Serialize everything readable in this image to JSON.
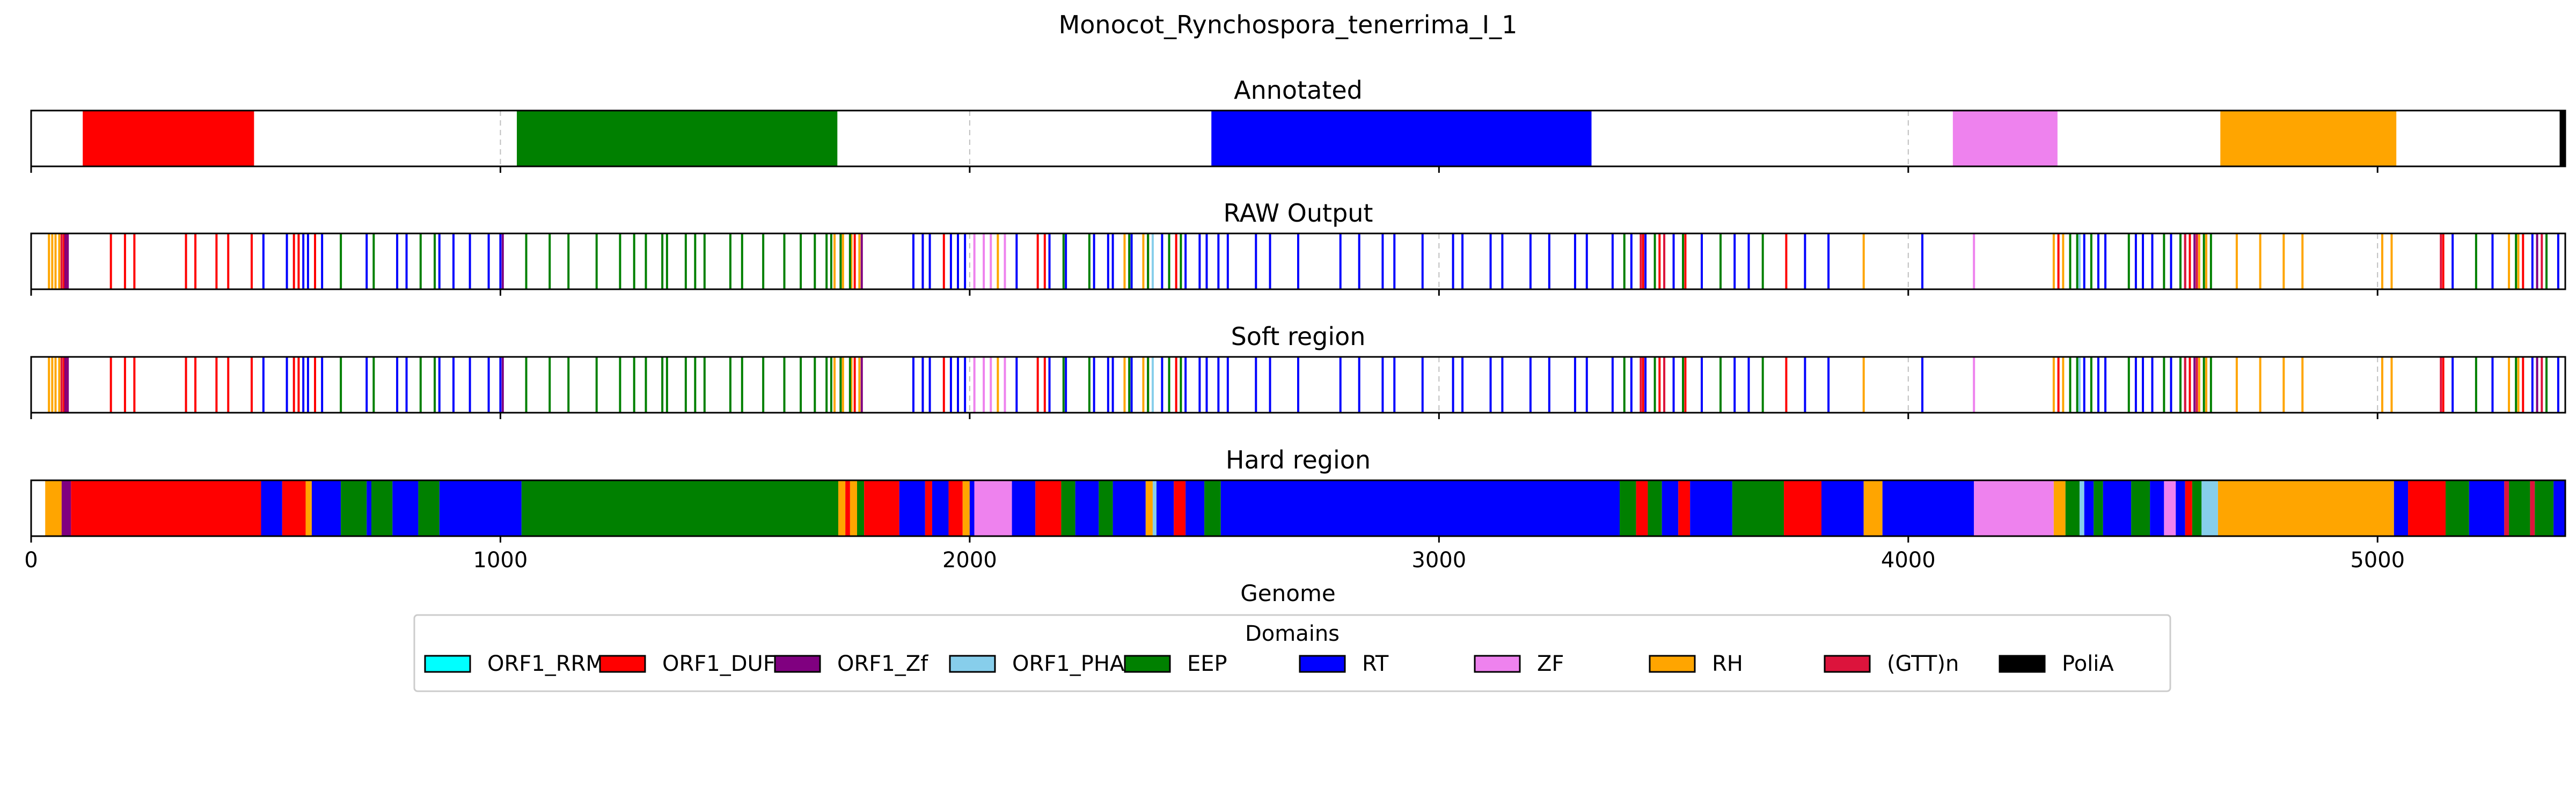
{
  "chart_data": {
    "type": "track",
    "title": "Monocot_Rynchospora_tenerrima_I_1",
    "xlabel": "Genome",
    "xlim": [
      0,
      5400
    ],
    "xticks": [
      0,
      1000,
      2000,
      3000,
      4000,
      5000
    ],
    "grid": true,
    "legend_title": "Domains",
    "legend_placement": "bottom-center",
    "domains": [
      {
        "name": "ORF1_RRM",
        "color": "#00ffff"
      },
      {
        "name": "ORF1_DUF",
        "color": "#ff0000"
      },
      {
        "name": "ORF1_Zf",
        "color": "#800080"
      },
      {
        "name": "ORF1_PHA",
        "color": "#87ceeb"
      },
      {
        "name": "EEP",
        "color": "#008000"
      },
      {
        "name": "RT",
        "color": "#0000ff"
      },
      {
        "name": "ZF",
        "color": "#ee82ee"
      },
      {
        "name": "RH",
        "color": "#ffa500"
      },
      {
        "name": "(GTT)n",
        "color": "#dc143c"
      },
      {
        "name": "PoliA",
        "color": "#000000"
      }
    ],
    "tracks": [
      {
        "title": "Annotated",
        "segments": [
          {
            "domain": "ORF1_DUF",
            "start": 110,
            "end": 475
          },
          {
            "domain": "EEP",
            "start": 1035,
            "end": 1718
          },
          {
            "domain": "RT",
            "start": 2515,
            "end": 3325
          },
          {
            "domain": "ZF",
            "start": 4095,
            "end": 4318
          },
          {
            "domain": "RH",
            "start": 4665,
            "end": 5040
          },
          {
            "domain": "PoliA",
            "start": 5388,
            "end": 5400
          }
        ]
      },
      {
        "title": "RAW Output",
        "lines": [
          {
            "domain": "RH",
            "x": [
              38,
              45,
              52,
              60,
              1712,
              1730,
              1748,
              1765,
              2060,
              2330,
              2370,
              3905,
              4310,
              4330,
              4620,
              4635,
              4700,
              4750,
              4800,
              4840,
              5010,
              5030,
              5280,
              5300
            ]
          },
          {
            "domain": "ORF1_DUF",
            "x": [
              70,
              75,
              170,
              200,
              220,
              330,
              350,
              395,
              420,
              470,
              560,
              570,
              605,
              1725,
              1755,
              1900,
              1945,
              2145,
              2160,
              2380,
              2440,
              3435,
              3470,
              3525,
              3740,
              4320,
              4600,
              5140,
              5310
            ]
          },
          {
            "domain": "ORF1_Zf",
            "x": [
              73,
              78,
              1005,
              1745,
              1770,
              4590,
              4610,
              5340
            ]
          },
          {
            "domain": "(GTT)n",
            "x": [
              65,
              3430,
              3480,
              4590,
              4615,
              5135,
              5350
            ]
          },
          {
            "domain": "EEP",
            "x": [
              660,
              730,
              830,
              860,
              1055,
              1105,
              1145,
              1205,
              1255,
              1285,
              1310,
              1345,
              1355,
              1395,
              1415,
              1435,
              1490,
              1515,
              1560,
              1605,
              1640,
              1670,
              1695,
              1705,
              1725,
              1745,
              2200,
              2255,
              2340,
              2380,
              2425,
              2450,
              3395,
              3460,
              3520,
              3600,
              3690,
              4345,
              4360,
              4390,
              4470,
              4545,
              4580,
              4630,
              4645,
              5210,
              5295,
              5360
            ]
          },
          {
            "domain": "RT",
            "x": [
              495,
              545,
              580,
              590,
              620,
              715,
              780,
              800,
              870,
              900,
              935,
              975,
              1000,
              1880,
              1900,
              1915,
              1960,
              1975,
              1990,
              2100,
              2170,
              2205,
              2265,
              2295,
              2305,
              2345,
              2410,
              2460,
              2490,
              2505,
              2530,
              2550,
              2610,
              2640,
              2700,
              2790,
              2830,
              2880,
              2905,
              2965,
              3030,
              3050,
              3110,
              3135,
              3195,
              3235,
              3290,
              3315,
              3370,
              3410,
              3440,
              3500,
              3560,
              3630,
              3660,
              3780,
              3830,
              4030,
              4375,
              4405,
              4420,
              4485,
              4500,
              4520,
              4560,
              5160,
              5245,
              5330,
              5385
            ]
          },
          {
            "domain": "ZF",
            "x": [
              2010,
              2030,
              2045,
              2075,
              4140
            ]
          },
          {
            "domain": "ORF1_PHA",
            "x": [
              2390,
              4365
            ]
          }
        ]
      },
      {
        "title": "Soft region",
        "lines": [
          {
            "domain": "RH",
            "x": [
              38,
              45,
              52,
              60,
              1712,
              1730,
              1748,
              1765,
              2060,
              2330,
              2370,
              3905,
              4310,
              4330,
              4620,
              4635,
              4700,
              4750,
              4800,
              4840,
              5010,
              5030,
              5280,
              5300
            ]
          },
          {
            "domain": "ORF1_DUF",
            "x": [
              70,
              75,
              170,
              200,
              220,
              330,
              350,
              395,
              420,
              470,
              560,
              570,
              605,
              1725,
              1755,
              1900,
              1945,
              2145,
              2160,
              2380,
              2440,
              3435,
              3470,
              3525,
              3740,
              4320,
              4600,
              5140,
              5310
            ]
          },
          {
            "domain": "ORF1_Zf",
            "x": [
              73,
              78,
              1005,
              1745,
              1770,
              4590,
              4610,
              5340
            ]
          },
          {
            "domain": "(GTT)n",
            "x": [
              65,
              3430,
              3480,
              4590,
              4615,
              5135,
              5350
            ]
          },
          {
            "domain": "EEP",
            "x": [
              660,
              730,
              830,
              860,
              1055,
              1105,
              1145,
              1205,
              1255,
              1285,
              1310,
              1345,
              1355,
              1395,
              1415,
              1435,
              1490,
              1515,
              1560,
              1605,
              1640,
              1670,
              1695,
              1705,
              1725,
              1745,
              2200,
              2255,
              2340,
              2380,
              2425,
              2450,
              3395,
              3460,
              3520,
              3600,
              3690,
              4345,
              4360,
              4390,
              4470,
              4545,
              4580,
              4630,
              4645,
              5210,
              5295,
              5360
            ]
          },
          {
            "domain": "RT",
            "x": [
              495,
              545,
              580,
              590,
              620,
              715,
              780,
              800,
              870,
              900,
              935,
              975,
              1000,
              1880,
              1900,
              1915,
              1960,
              1975,
              1990,
              2100,
              2170,
              2205,
              2265,
              2295,
              2305,
              2345,
              2410,
              2460,
              2490,
              2505,
              2530,
              2550,
              2610,
              2640,
              2700,
              2790,
              2830,
              2880,
              2905,
              2965,
              3030,
              3050,
              3110,
              3135,
              3195,
              3235,
              3290,
              3315,
              3370,
              3410,
              3440,
              3500,
              3560,
              3630,
              3660,
              3780,
              3830,
              4030,
              4375,
              4405,
              4420,
              4485,
              4500,
              4520,
              4560,
              5160,
              5245,
              5330,
              5385
            ]
          },
          {
            "domain": "ZF",
            "x": [
              2010,
              2030,
              2045,
              2075,
              4140
            ]
          },
          {
            "domain": "ORF1_PHA",
            "x": [
              2390,
              4365
            ]
          }
        ]
      },
      {
        "title": "Hard region",
        "segments": [
          {
            "domain": "RH",
            "start": 30,
            "end": 65
          },
          {
            "domain": "ORF1_Zf",
            "start": 65,
            "end": 85
          },
          {
            "domain": "ORF1_DUF",
            "start": 85,
            "end": 490
          },
          {
            "domain": "RT",
            "start": 490,
            "end": 535
          },
          {
            "domain": "ORF1_DUF",
            "start": 535,
            "end": 585
          },
          {
            "domain": "RH",
            "start": 585,
            "end": 598
          },
          {
            "domain": "RT",
            "start": 598,
            "end": 660
          },
          {
            "domain": "EEP",
            "start": 660,
            "end": 715
          },
          {
            "domain": "RT",
            "start": 715,
            "end": 725
          },
          {
            "domain": "EEP",
            "start": 725,
            "end": 770
          },
          {
            "domain": "RT",
            "start": 770,
            "end": 825
          },
          {
            "domain": "EEP",
            "start": 825,
            "end": 870
          },
          {
            "domain": "RT",
            "start": 870,
            "end": 1045
          },
          {
            "domain": "EEP",
            "start": 1045,
            "end": 1720
          },
          {
            "domain": "RH",
            "start": 1720,
            "end": 1735
          },
          {
            "domain": "ORF1_DUF",
            "start": 1735,
            "end": 1745
          },
          {
            "domain": "RH",
            "start": 1745,
            "end": 1760
          },
          {
            "domain": "EEP",
            "start": 1760,
            "end": 1775
          },
          {
            "domain": "ORF1_DUF",
            "start": 1775,
            "end": 1850
          },
          {
            "domain": "RT",
            "start": 1850,
            "end": 1905
          },
          {
            "domain": "ORF1_DUF",
            "start": 1905,
            "end": 1920
          },
          {
            "domain": "RT",
            "start": 1920,
            "end": 1955
          },
          {
            "domain": "ORF1_DUF",
            "start": 1955,
            "end": 1985
          },
          {
            "domain": "RH",
            "start": 1985,
            "end": 2000
          },
          {
            "domain": "RT",
            "start": 2000,
            "end": 2010
          },
          {
            "domain": "ZF",
            "start": 2010,
            "end": 2090
          },
          {
            "domain": "RT",
            "start": 2090,
            "end": 2140
          },
          {
            "domain": "ORF1_DUF",
            "start": 2140,
            "end": 2195
          },
          {
            "domain": "EEP",
            "start": 2195,
            "end": 2225
          },
          {
            "domain": "RT",
            "start": 2225,
            "end": 2275
          },
          {
            "domain": "EEP",
            "start": 2275,
            "end": 2305
          },
          {
            "domain": "RT",
            "start": 2305,
            "end": 2375
          },
          {
            "domain": "RH",
            "start": 2375,
            "end": 2390
          },
          {
            "domain": "ORF1_PHA",
            "start": 2390,
            "end": 2398
          },
          {
            "domain": "RT",
            "start": 2398,
            "end": 2435
          },
          {
            "domain": "ORF1_DUF",
            "start": 2435,
            "end": 2460
          },
          {
            "domain": "RT",
            "start": 2460,
            "end": 2500
          },
          {
            "domain": "EEP",
            "start": 2500,
            "end": 2535
          },
          {
            "domain": "RT",
            "start": 2535,
            "end": 3385
          },
          {
            "domain": "EEP",
            "start": 3385,
            "end": 3420
          },
          {
            "domain": "ORF1_DUF",
            "start": 3420,
            "end": 3445
          },
          {
            "domain": "EEP",
            "start": 3445,
            "end": 3475
          },
          {
            "domain": "RT",
            "start": 3475,
            "end": 3510
          },
          {
            "domain": "ORF1_DUF",
            "start": 3510,
            "end": 3535
          },
          {
            "domain": "RT",
            "start": 3535,
            "end": 3625
          },
          {
            "domain": "EEP",
            "start": 3625,
            "end": 3735
          },
          {
            "domain": "ORF1_DUF",
            "start": 3735,
            "end": 3815
          },
          {
            "domain": "RT",
            "start": 3815,
            "end": 3905
          },
          {
            "domain": "RH",
            "start": 3905,
            "end": 3945
          },
          {
            "domain": "RT",
            "start": 3945,
            "end": 4140
          },
          {
            "domain": "ZF",
            "start": 4140,
            "end": 4310
          },
          {
            "domain": "RH",
            "start": 4310,
            "end": 4335
          },
          {
            "domain": "EEP",
            "start": 4335,
            "end": 4365
          },
          {
            "domain": "ORF1_PHA",
            "start": 4365,
            "end": 4375
          },
          {
            "domain": "RT",
            "start": 4375,
            "end": 4395
          },
          {
            "domain": "EEP",
            "start": 4395,
            "end": 4415
          },
          {
            "domain": "RT",
            "start": 4415,
            "end": 4475
          },
          {
            "domain": "EEP",
            "start": 4475,
            "end": 4515
          },
          {
            "domain": "RT",
            "start": 4515,
            "end": 4545
          },
          {
            "domain": "ZF",
            "start": 4545,
            "end": 4570
          },
          {
            "domain": "RT",
            "start": 4570,
            "end": 4590
          },
          {
            "domain": "ORF1_DUF",
            "start": 4590,
            "end": 4605
          },
          {
            "domain": "EEP",
            "start": 4605,
            "end": 4625
          },
          {
            "domain": "ORF1_PHA",
            "start": 4625,
            "end": 4660
          },
          {
            "domain": "RH",
            "start": 4660,
            "end": 5035
          },
          {
            "domain": "RT",
            "start": 5035,
            "end": 5065
          },
          {
            "domain": "ORF1_DUF",
            "start": 5065,
            "end": 5145
          },
          {
            "domain": "EEP",
            "start": 5145,
            "end": 5195
          },
          {
            "domain": "RT",
            "start": 5195,
            "end": 5270
          },
          {
            "domain": "(GTT)n",
            "start": 5270,
            "end": 5280
          },
          {
            "domain": "EEP",
            "start": 5280,
            "end": 5325
          },
          {
            "domain": "(GTT)n",
            "start": 5325,
            "end": 5335
          },
          {
            "domain": "EEP",
            "start": 5335,
            "end": 5375
          },
          {
            "domain": "RT",
            "start": 5375,
            "end": 5400
          }
        ]
      }
    ]
  }
}
